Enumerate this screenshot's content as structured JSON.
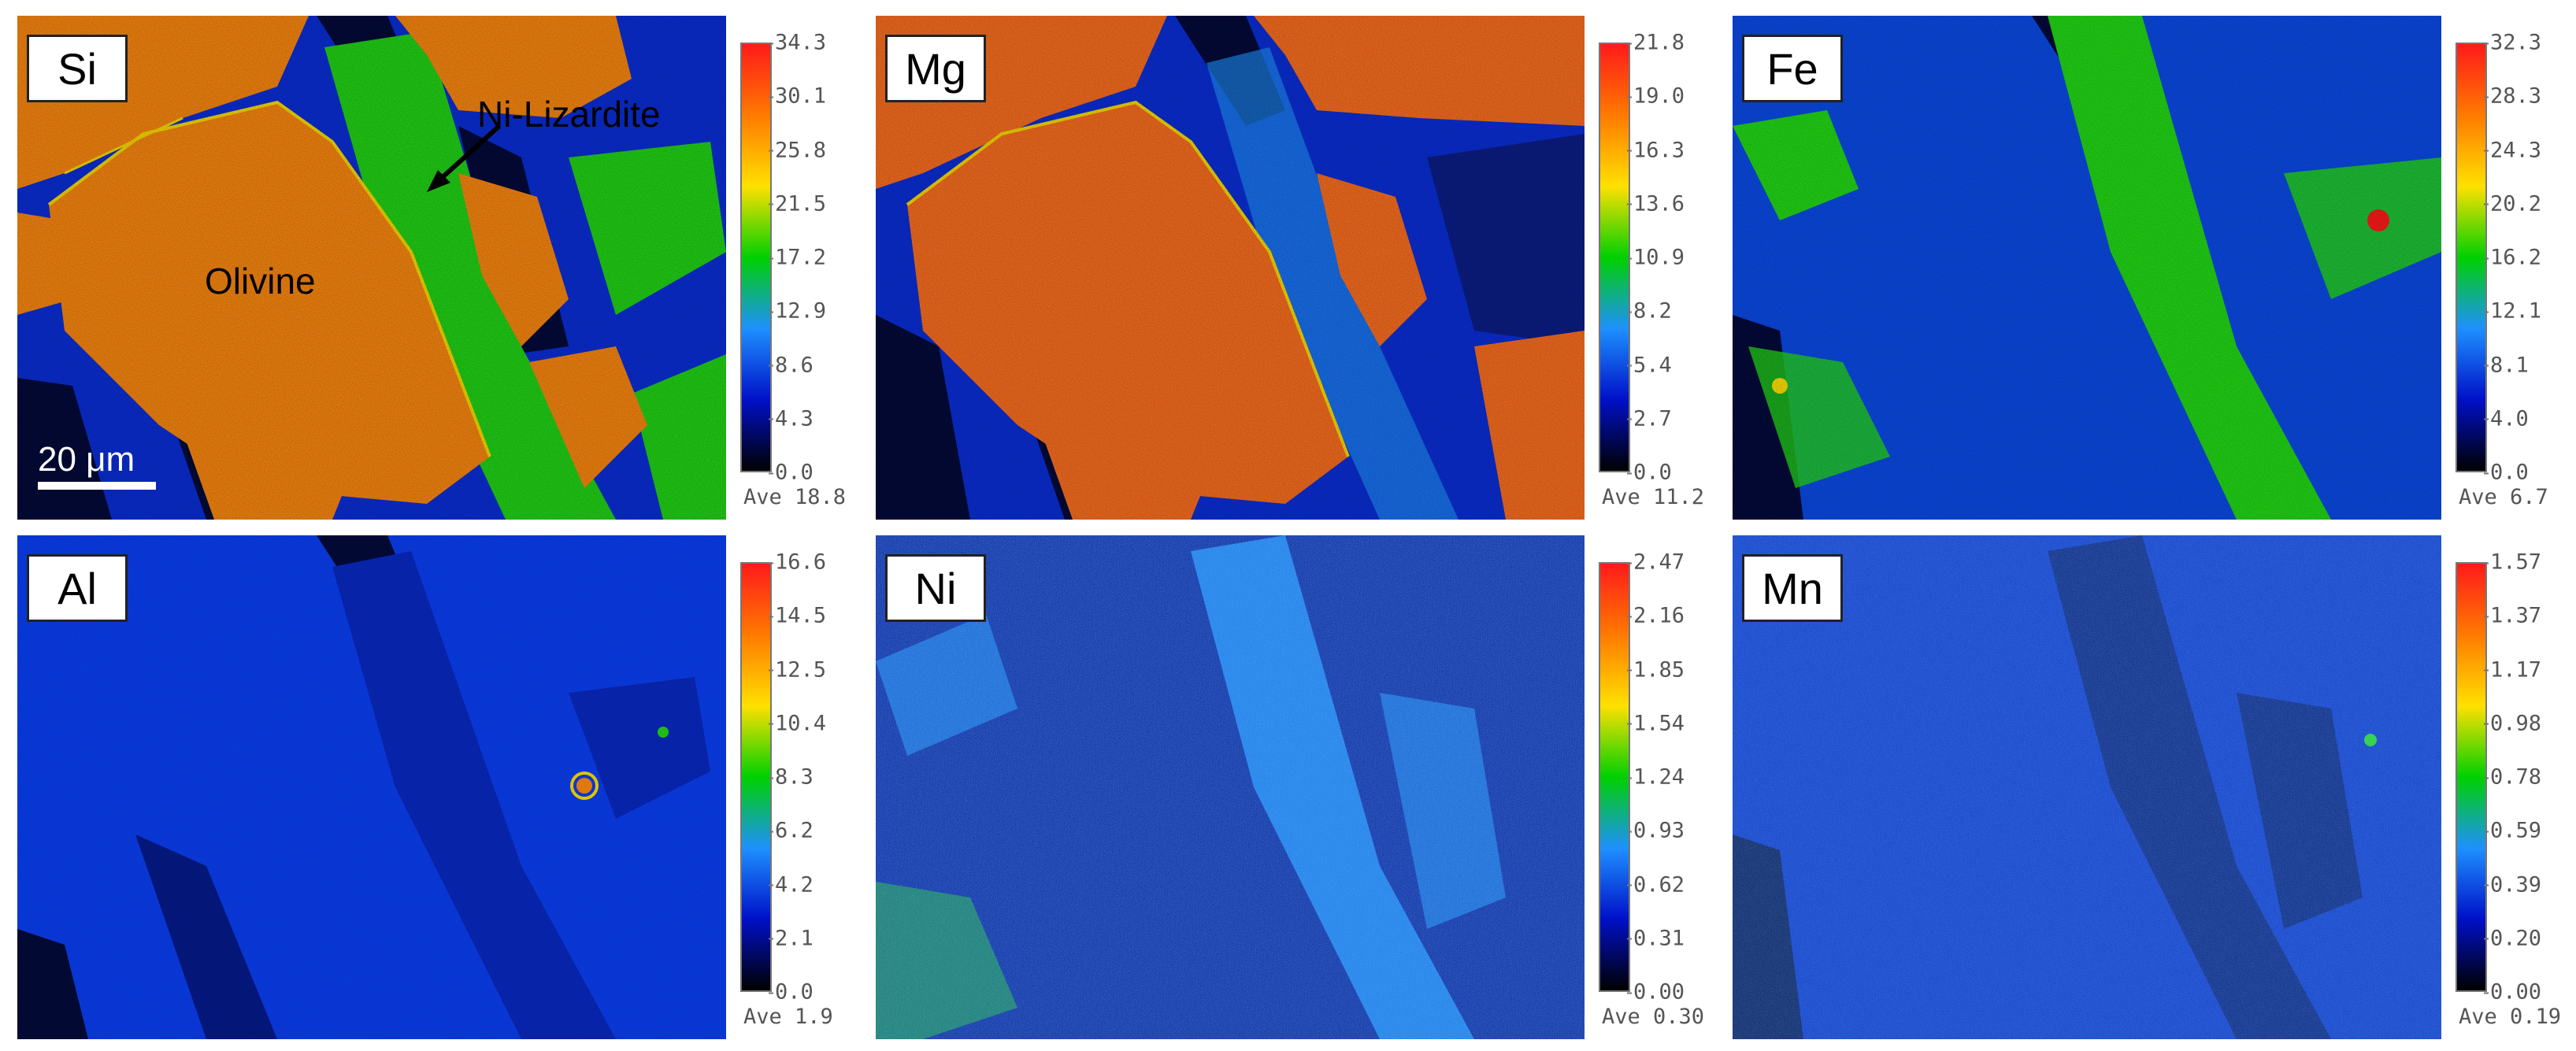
{
  "panels": [
    {
      "element": "Si",
      "ticks": [
        "34.3",
        "30.1",
        "25.8",
        "21.5",
        "17.2",
        "12.9",
        "8.6",
        "4.3",
        "0.0"
      ],
      "average": "Ave 18.8",
      "annotations": {
        "olivine_label": "Olivine",
        "lizardite_label": "Ni-Lizardite",
        "scalebar_label": "20 μm"
      }
    },
    {
      "element": "Mg",
      "ticks": [
        "21.8",
        "19.0",
        "16.3",
        "13.6",
        "10.9",
        "8.2",
        "5.4",
        "2.7",
        "0.0"
      ],
      "average": "Ave 11.2"
    },
    {
      "element": "Fe",
      "ticks": [
        "32.3",
        "28.3",
        "24.3",
        "20.2",
        "16.2",
        "12.1",
        "8.1",
        "4.0",
        "0.0"
      ],
      "average": "Ave 6.7"
    },
    {
      "element": "Al",
      "ticks": [
        "16.6",
        "14.5",
        "12.5",
        "10.4",
        "8.3",
        "6.2",
        "4.2",
        "2.1",
        "0.0"
      ],
      "average": "Ave 1.9"
    },
    {
      "element": "Ni",
      "ticks": [
        "2.47",
        "2.16",
        "1.85",
        "1.54",
        "1.24",
        "0.93",
        "0.62",
        "0.31",
        "0.00"
      ],
      "average": "Ave 0.30"
    },
    {
      "element": "Mn",
      "ticks": [
        "1.57",
        "1.37",
        "1.17",
        "0.98",
        "0.78",
        "0.59",
        "0.39",
        "0.20",
        "0.00"
      ],
      "average": "Ave 0.19"
    }
  ],
  "colors": {
    "colorbar_stops": [
      "#ff1a1a",
      "#ff7a00",
      "#ffe000",
      "#00d000",
      "#1e90ff",
      "#0010c8",
      "#000000"
    ],
    "olivine_fill": "#ff8a10",
    "matrix_blue": "#0a2fdc",
    "vein_green": "#22d816",
    "dark": "#020a3a"
  }
}
